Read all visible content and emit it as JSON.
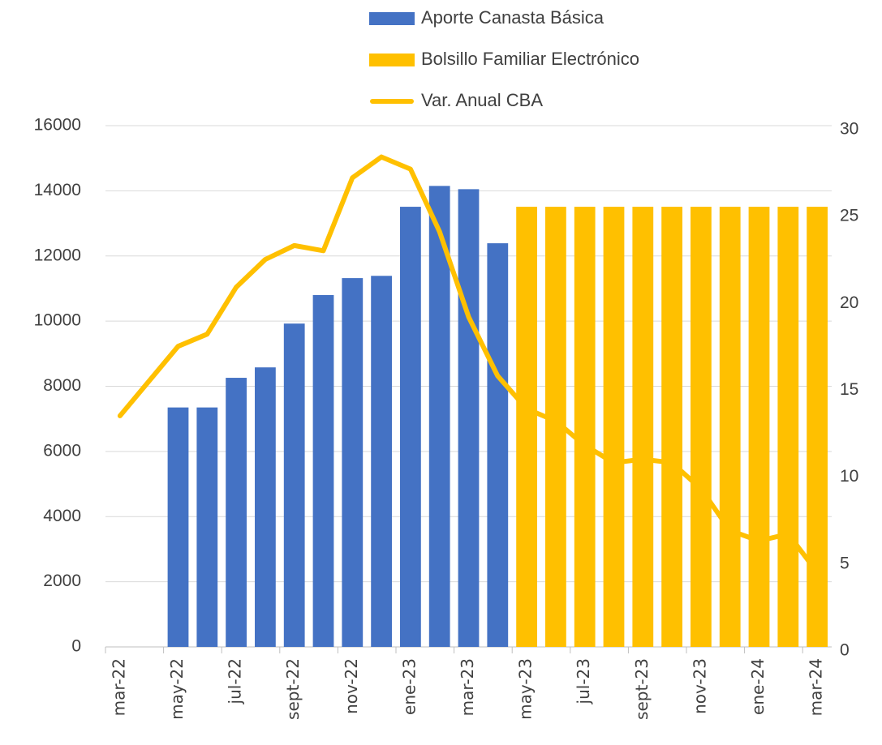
{
  "chart_data": {
    "type": "bar-line",
    "categories": [
      "mar-22",
      null,
      "may-22",
      null,
      "jul-22",
      null,
      "sept-22",
      null,
      "nov-22",
      null,
      "ene-23",
      null,
      "mar-23",
      null,
      "may-23",
      null,
      "jul-23",
      null,
      "sept-23",
      null,
      "nov-23",
      null,
      "ene-24",
      null,
      "mar-24"
    ],
    "series": [
      {
        "name": "Aporte Canasta Básica",
        "type": "bar",
        "color": "#4472c4",
        "values": [
          null,
          null,
          7350,
          7350,
          8260,
          8580,
          9925,
          10800,
          11320,
          11390,
          13510,
          14150,
          14050,
          12390,
          null,
          null,
          null,
          null,
          null,
          null,
          null,
          null,
          null,
          null,
          null
        ]
      },
      {
        "name": "Bolsillo Familiar Electrónico",
        "type": "bar",
        "color": "#ffc000",
        "values": [
          null,
          null,
          null,
          null,
          null,
          null,
          null,
          null,
          null,
          null,
          null,
          null,
          null,
          null,
          13510,
          13510,
          13510,
          13510,
          13510,
          13510,
          13510,
          13510,
          13510,
          13510,
          13510
        ]
      },
      {
        "name": "Var. Anual CBA",
        "type": "line",
        "axis": "y2",
        "color": "#ffc000",
        "values": [
          13.3,
          15.3,
          17.3,
          18.0,
          20.7,
          22.3,
          23.1,
          22.8,
          27.0,
          28.2,
          27.5,
          23.9,
          19.0,
          15.6,
          13.7,
          13.0,
          11.6,
          10.6,
          10.8,
          10.6,
          9.1,
          6.7,
          6.1,
          6.5,
          4.3
        ]
      }
    ],
    "ylim": [
      0,
      16000
    ],
    "yticks": [
      0,
      2000,
      4000,
      6000,
      8000,
      10000,
      12000,
      14000,
      16000
    ],
    "y2lim": [
      0,
      30
    ],
    "y2ticks": [
      0,
      5,
      10,
      15,
      20,
      25,
      30
    ],
    "grid": true,
    "legend": "top"
  }
}
